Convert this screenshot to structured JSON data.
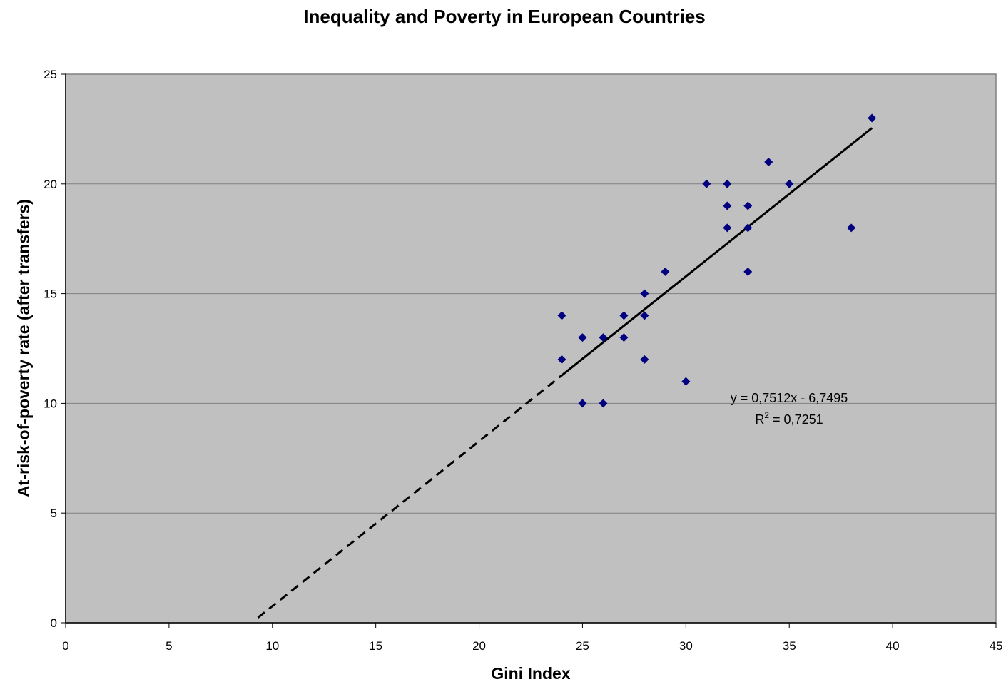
{
  "chart_data": {
    "type": "scatter",
    "title": "Inequality and Poverty in European Countries",
    "xlabel": "Gini Index",
    "ylabel": "At-risk-of-poverty rate (after transfers)",
    "xlim": [
      0,
      45
    ],
    "ylim": [
      0,
      25
    ],
    "xticks": [
      0,
      5,
      10,
      15,
      20,
      25,
      30,
      35,
      40,
      45
    ],
    "yticks": [
      0,
      5,
      10,
      15,
      20,
      25
    ],
    "grid": "horizontal",
    "points": [
      {
        "x": 24,
        "y": 14
      },
      {
        "x": 24,
        "y": 12
      },
      {
        "x": 25,
        "y": 13
      },
      {
        "x": 25,
        "y": 10
      },
      {
        "x": 26,
        "y": 13
      },
      {
        "x": 26,
        "y": 10
      },
      {
        "x": 27,
        "y": 14
      },
      {
        "x": 27,
        "y": 13
      },
      {
        "x": 28,
        "y": 15
      },
      {
        "x": 28,
        "y": 14
      },
      {
        "x": 28,
        "y": 12
      },
      {
        "x": 29,
        "y": 16
      },
      {
        "x": 30,
        "y": 11
      },
      {
        "x": 31,
        "y": 20
      },
      {
        "x": 32,
        "y": 20
      },
      {
        "x": 32,
        "y": 19
      },
      {
        "x": 32,
        "y": 18
      },
      {
        "x": 33,
        "y": 19
      },
      {
        "x": 33,
        "y": 18
      },
      {
        "x": 33,
        "y": 16
      },
      {
        "x": 34,
        "y": 21
      },
      {
        "x": 35,
        "y": 20
      },
      {
        "x": 38,
        "y": 18
      },
      {
        "x": 39,
        "y": 23
      }
    ],
    "trendline": {
      "slope": 0.7512,
      "intercept": -6.7495,
      "solid_range": [
        24,
        39
      ],
      "dashed_range": [
        9.3,
        24
      ],
      "equation": "y = 0,7512x - 6,7495",
      "r2_prefix": "R",
      "r2_sup": "2",
      "r2_value": " = 0,7251"
    },
    "colors": {
      "plot_bg": "#c0c0c0",
      "marker": "#000080",
      "gridline": "#808080",
      "trendline": "#000000"
    }
  }
}
